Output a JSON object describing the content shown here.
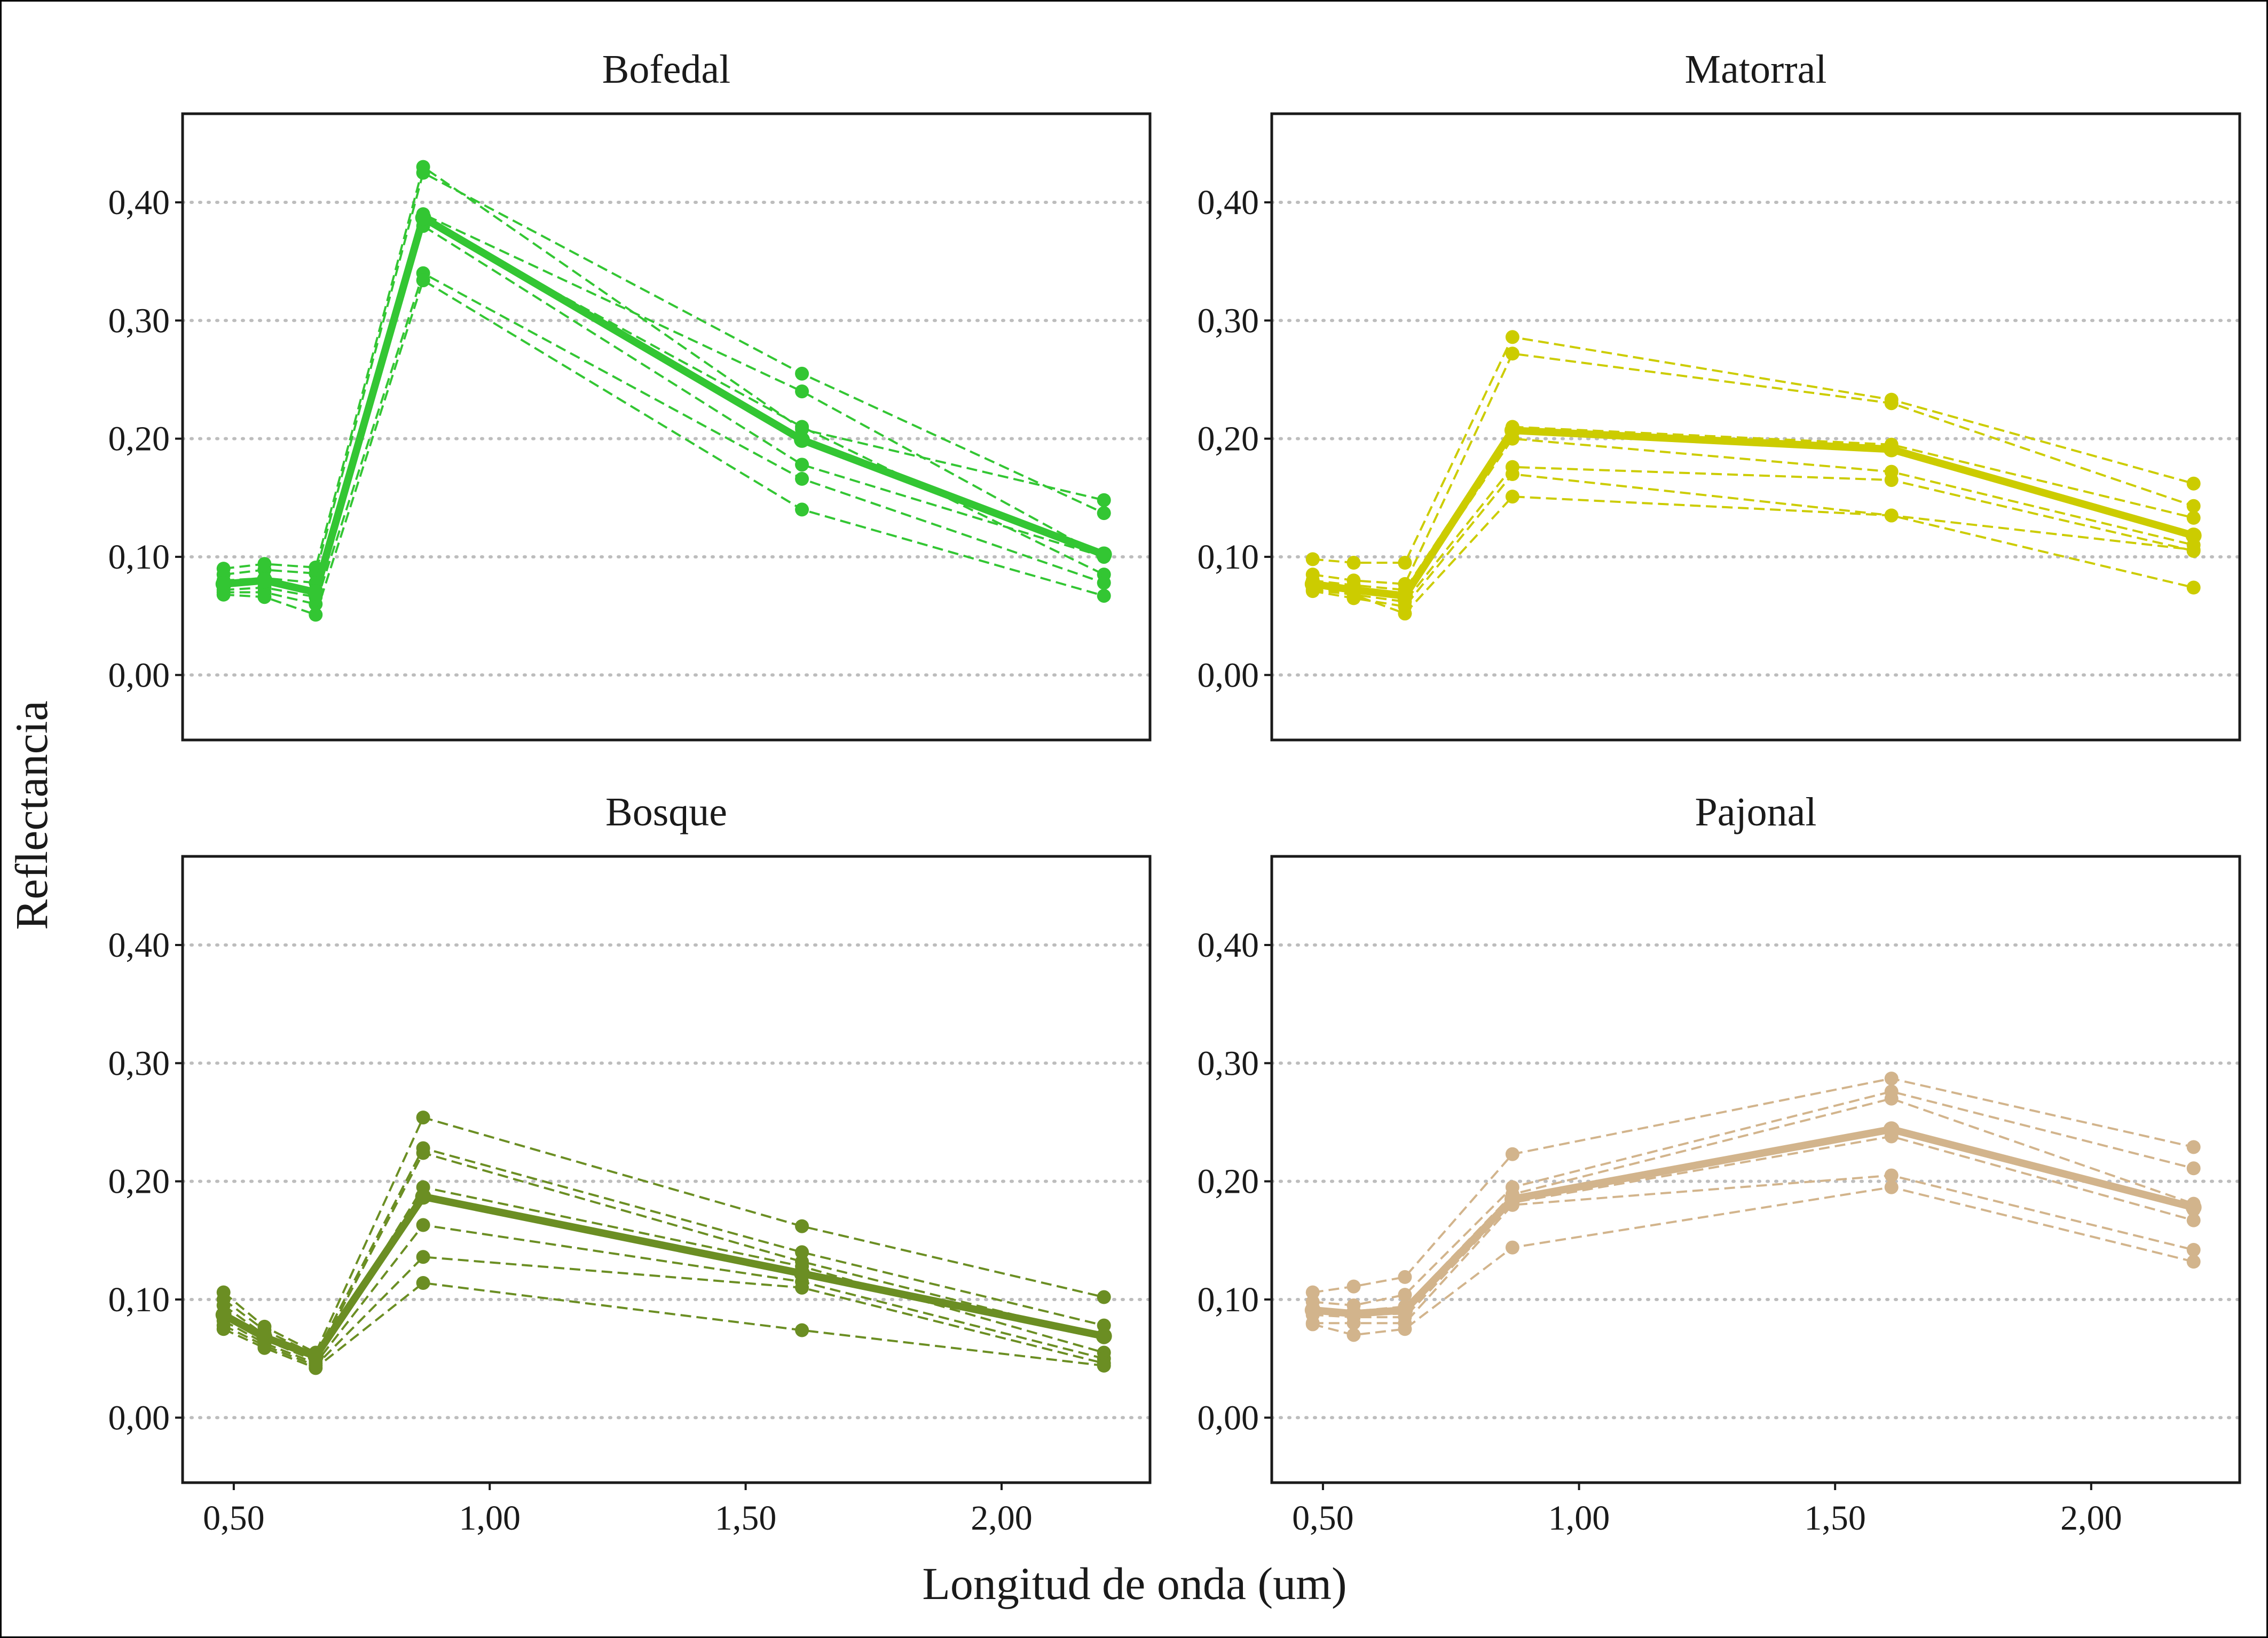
{
  "chart_data": {
    "type": "line",
    "ylabel": "Reflectancia",
    "xlabel": "Longitud de onda (um)",
    "ylim": [
      -0.055,
      0.475
    ],
    "xlim": [
      0.4,
      2.29
    ],
    "y_ticks": [
      0.0,
      0.1,
      0.2,
      0.3,
      0.4
    ],
    "y_tick_labels": [
      "0,00",
      "0,10",
      "0,20",
      "0,30",
      "0,40"
    ],
    "x_ticks": [
      0.5,
      1.0,
      1.5,
      2.0
    ],
    "x_tick_labels": [
      "0,50",
      "1,00",
      "1,50",
      "2,00"
    ],
    "grid": "horizontal dotted",
    "x": [
      0.48,
      0.56,
      0.66,
      0.87,
      1.61,
      2.2
    ],
    "panels": [
      {
        "title": "Bofedal",
        "color": "#33c633",
        "mean": [
          0.077,
          0.08,
          0.07,
          0.387,
          0.199,
          0.102
        ],
        "samples": [
          [
            0.09,
            0.094,
            0.091,
            0.43,
            0.208,
            0.148
          ],
          [
            0.085,
            0.089,
            0.086,
            0.425,
            0.255,
            0.137
          ],
          [
            0.08,
            0.082,
            0.078,
            0.39,
            0.24,
            0.1
          ],
          [
            0.075,
            0.078,
            0.072,
            0.385,
            0.21,
            0.085
          ],
          [
            0.072,
            0.074,
            0.066,
            0.38,
            0.178,
            0.1
          ],
          [
            0.07,
            0.07,
            0.06,
            0.34,
            0.166,
            0.078
          ],
          [
            0.068,
            0.066,
            0.051,
            0.334,
            0.14,
            0.067
          ]
        ]
      },
      {
        "title": "Matorral",
        "color": "#cccc00",
        "mean": [
          0.077,
          0.072,
          0.067,
          0.207,
          0.191,
          0.118
        ],
        "samples": [
          [
            0.098,
            0.095,
            0.095,
            0.286,
            0.233,
            0.162
          ],
          [
            0.085,
            0.08,
            0.077,
            0.272,
            0.23,
            0.143
          ],
          [
            0.08,
            0.076,
            0.072,
            0.21,
            0.195,
            0.133
          ],
          [
            0.077,
            0.072,
            0.066,
            0.2,
            0.172,
            0.11
          ],
          [
            0.074,
            0.068,
            0.062,
            0.176,
            0.165,
            0.105
          ],
          [
            0.071,
            0.065,
            0.058,
            0.17,
            0.135,
            0.106
          ],
          [
            0.072,
            0.068,
            0.052,
            0.151,
            0.135,
            0.074
          ]
        ]
      },
      {
        "title": "Bosque",
        "color": "#6b8e23",
        "mean": [
          0.087,
          0.068,
          0.052,
          0.187,
          0.122,
          0.069
        ],
        "samples": [
          [
            0.106,
            0.077,
            0.055,
            0.254,
            0.162,
            0.102
          ],
          [
            0.1,
            0.074,
            0.053,
            0.228,
            0.14,
            0.078
          ],
          [
            0.095,
            0.07,
            0.05,
            0.224,
            0.132,
            0.068
          ],
          [
            0.088,
            0.066,
            0.048,
            0.195,
            0.128,
            0.055
          ],
          [
            0.082,
            0.063,
            0.046,
            0.163,
            0.115,
            0.05
          ],
          [
            0.078,
            0.061,
            0.044,
            0.136,
            0.11,
            0.046
          ],
          [
            0.075,
            0.059,
            0.042,
            0.114,
            0.074,
            0.044
          ]
        ]
      },
      {
        "title": "Pajonal",
        "color": "#d2b48c",
        "mean": [
          0.091,
          0.088,
          0.091,
          0.185,
          0.244,
          0.178
        ],
        "samples": [
          [
            0.106,
            0.111,
            0.119,
            0.223,
            0.287,
            0.229
          ],
          [
            0.098,
            0.095,
            0.104,
            0.195,
            0.276,
            0.211
          ],
          [
            0.093,
            0.09,
            0.094,
            0.189,
            0.27,
            0.181
          ],
          [
            0.09,
            0.087,
            0.088,
            0.186,
            0.243,
            0.176
          ],
          [
            0.087,
            0.085,
            0.085,
            0.182,
            0.238,
            0.167
          ],
          [
            0.08,
            0.08,
            0.08,
            0.18,
            0.205,
            0.142
          ],
          [
            0.079,
            0.07,
            0.075,
            0.144,
            0.195,
            0.132
          ]
        ]
      }
    ]
  }
}
